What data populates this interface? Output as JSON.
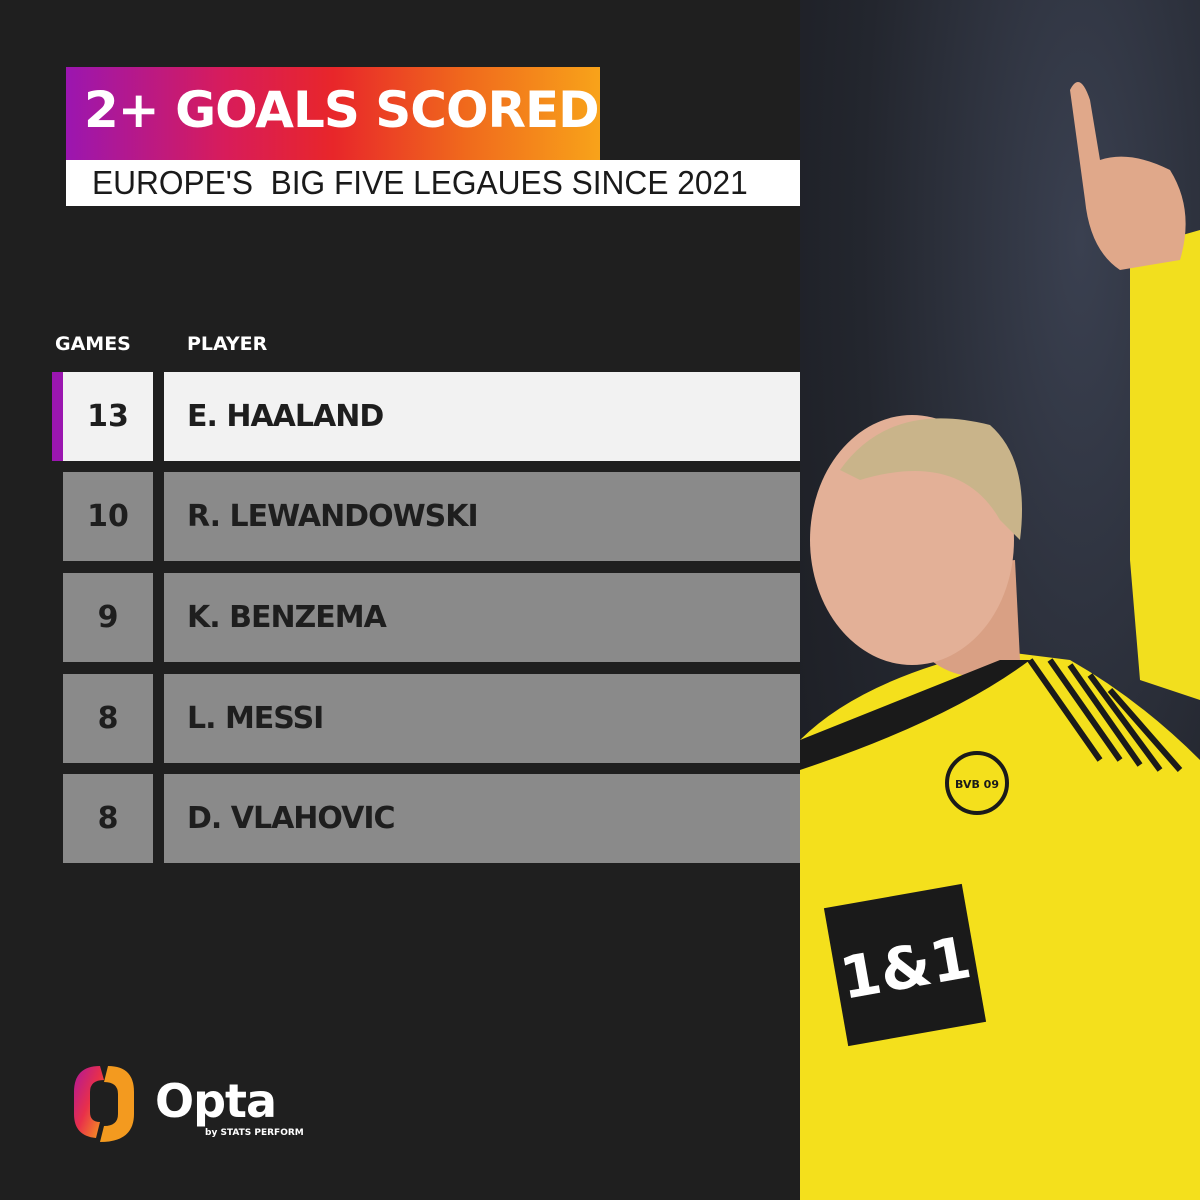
{
  "title": "2+ GOALS SCORED",
  "subtitle": "EUROPE'S  BIG FIVE LEGAUES SINCE 2021",
  "table": {
    "headers": {
      "games": "GAMES",
      "player": "PLAYER"
    },
    "rows": [
      {
        "games": "13",
        "player": "E. HAALAND",
        "highlight": true
      },
      {
        "games": "10",
        "player": "R. LEWANDOWSKI",
        "highlight": false
      },
      {
        "games": "9",
        "player": "K. BENZEMA",
        "highlight": false
      },
      {
        "games": "8",
        "player": "L. MESSI",
        "highlight": false
      },
      {
        "games": "8",
        "player": "D. VLAHOVIC",
        "highlight": false
      }
    ]
  },
  "logo": {
    "name": "Opta",
    "tagline": "by STATS PERFORM"
  },
  "photo": {
    "jersey_sponsor": "1&1",
    "badge": "BVB 09"
  },
  "colors": {
    "accent": "#9b16b0",
    "gradient_end": "#f8a31a",
    "background": "#1f1f1f",
    "row": "#8a8a8a",
    "highlight_row": "#f2f2f2"
  }
}
